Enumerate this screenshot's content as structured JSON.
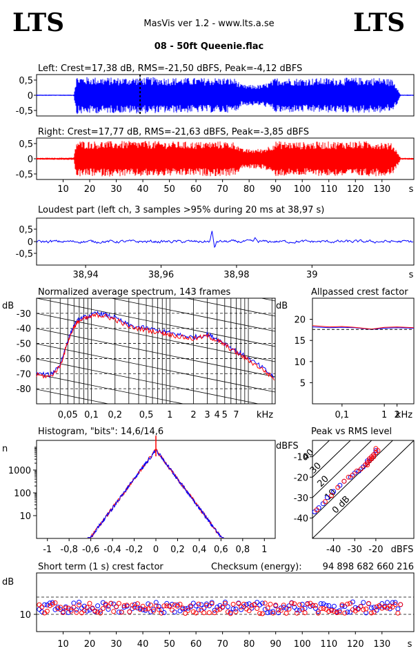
{
  "header": {
    "logo_left": "LTS",
    "logo_right": "LTS",
    "app_title": "MasVis ver 1.2 - www.lts.a.se",
    "file_name": "08 - 50ft Queenie.flac"
  },
  "colors": {
    "left": "#0000ff",
    "right": "#ff0000",
    "background": "#ffffff"
  },
  "chart_data": [
    {
      "type": "area",
      "title": "Left: Crest=17,38 dB, RMS=-21,50 dBFS, Peak=-4,12 dBFS",
      "channel": "left",
      "yticks": [
        "0,5",
        "0",
        "-0,5"
      ],
      "ylim": [
        -1,
        1
      ],
      "xlim": [
        0,
        142
      ],
      "marker_x": 38.97,
      "envelope": {
        "t": [
          0,
          14,
          15,
          20,
          30,
          40,
          50,
          60,
          70,
          75,
          77,
          80,
          85,
          88,
          90,
          100,
          110,
          120,
          130,
          134,
          136,
          137,
          142
        ],
        "amp": [
          0.02,
          0.02,
          0.62,
          0.6,
          0.58,
          0.6,
          0.58,
          0.57,
          0.58,
          0.55,
          0.35,
          0.34,
          0.35,
          0.45,
          0.58,
          0.56,
          0.57,
          0.58,
          0.58,
          0.52,
          0.25,
          0.02,
          0.02
        ]
      }
    },
    {
      "type": "area",
      "title": "Right: Crest=17,77 dB, RMS=-21,63 dBFS, Peak=-3,85 dBFS",
      "channel": "right",
      "yticks": [
        "0,5",
        "0",
        "-0,5"
      ],
      "ylim": [
        -1,
        1
      ],
      "xlim": [
        0,
        142
      ],
      "xticks": [
        "10",
        "20",
        "30",
        "40",
        "50",
        "60",
        "70",
        "80",
        "90",
        "100",
        "110",
        "120",
        "130"
      ],
      "xunit": "s",
      "envelope": {
        "t": [
          0,
          14,
          15,
          20,
          30,
          40,
          50,
          60,
          70,
          75,
          77,
          80,
          85,
          88,
          90,
          100,
          110,
          120,
          130,
          134,
          136,
          137,
          142
        ],
        "amp": [
          0.03,
          0.04,
          0.6,
          0.58,
          0.58,
          0.59,
          0.57,
          0.56,
          0.58,
          0.55,
          0.33,
          0.32,
          0.33,
          0.45,
          0.58,
          0.55,
          0.57,
          0.58,
          0.57,
          0.5,
          0.22,
          0.03,
          0.03
        ]
      }
    },
    {
      "type": "line",
      "title": "Loudest part (left  ch, 3 samples >95% during 20 ms at 38,97 s)",
      "yticks": [
        "0,5",
        "0",
        "-0,5"
      ],
      "ylim": [
        -1,
        1
      ],
      "xlim": [
        38.927,
        39.027
      ],
      "xticks": [
        "38,94",
        "38,96",
        "38,98",
        "39"
      ],
      "xunit": "s",
      "spikes": [
        {
          "x": 38.9735,
          "y": 0.38
        },
        {
          "x": 38.9742,
          "y": -0.22
        },
        {
          "x": 38.985,
          "y": 0.12
        }
      ]
    },
    {
      "type": "line",
      "title": "Normalized average spectrum, 143 frames",
      "ylabel": "dB",
      "yticks": [
        "-30",
        "-40",
        "-50",
        "-60",
        "-70",
        "-80"
      ],
      "ylim": [
        -90,
        -20
      ],
      "xscale": "log",
      "xlim": [
        0.02,
        22
      ],
      "xticks": [
        "0,05",
        "0,1",
        "0,2",
        "0,5",
        "1",
        "2",
        "3",
        "4",
        "5",
        "7"
      ],
      "xunit": "kHz",
      "series": [
        {
          "channel": "left",
          "x": [
            0.02,
            0.03,
            0.04,
            0.05,
            0.06,
            0.07,
            0.09,
            0.12,
            0.15,
            0.2,
            0.3,
            0.5,
            0.8,
            1,
            1.5,
            2,
            3,
            4,
            5,
            7,
            10,
            15,
            22
          ],
          "y": [
            -70,
            -71,
            -64,
            -48,
            -38,
            -34,
            -32,
            -30,
            -31,
            -33,
            -38,
            -40,
            -42,
            -43,
            -45,
            -46,
            -44,
            -47,
            -50,
            -55,
            -60,
            -66,
            -73
          ]
        },
        {
          "channel": "right",
          "x": [
            0.02,
            0.03,
            0.04,
            0.05,
            0.06,
            0.07,
            0.09,
            0.12,
            0.15,
            0.2,
            0.3,
            0.5,
            0.8,
            1,
            1.5,
            2,
            3,
            4,
            5,
            7,
            10,
            15,
            22
          ],
          "y": [
            -71,
            -72,
            -65,
            -49,
            -39,
            -35,
            -33,
            -31,
            -32,
            -34,
            -39,
            -41,
            -43,
            -44,
            -46,
            -47,
            -45,
            -48,
            -51,
            -56,
            -61,
            -67,
            -74
          ]
        }
      ]
    },
    {
      "type": "line",
      "title": "Allpassed crest factor",
      "ylabel": "dB",
      "yticks": [
        "20",
        "15",
        "10",
        "5"
      ],
      "ylim": [
        0,
        25
      ],
      "xscale": "log",
      "xlim": [
        0.02,
        5
      ],
      "xticks": [
        "0,1",
        "1",
        "2"
      ],
      "xunit": "kHz",
      "series": [
        {
          "channel": "left",
          "x": [
            0.02,
            0.05,
            0.1,
            0.2,
            0.5,
            1,
            2,
            5
          ],
          "y": [
            18.2,
            18.0,
            18.1,
            18.0,
            17.6,
            17.9,
            18.0,
            17.9
          ]
        },
        {
          "channel": "right",
          "x": [
            0.02,
            0.05,
            0.1,
            0.2,
            0.5,
            1,
            2,
            5
          ],
          "y": [
            18.5,
            18.2,
            18.3,
            18.1,
            17.7,
            18.1,
            18.2,
            18.0
          ]
        }
      ]
    },
    {
      "type": "line",
      "title": "Histogram, \"bits\": 14,6/14,6",
      "ylabel": "n",
      "yscale": "log",
      "yticks": [
        "1000",
        "100",
        "10"
      ],
      "ylim": [
        1,
        20000
      ],
      "xlim": [
        -1.1,
        1.1
      ],
      "xticks": [
        "-1",
        "-0,8",
        "-0,6",
        "-0,4",
        "-0,2",
        "0",
        "0,2",
        "0,4",
        "0,6",
        "0,8",
        "1"
      ],
      "peak_count": 8000,
      "edge": 0.63
    },
    {
      "type": "scatter",
      "title": "Peak vs RMS level",
      "ylabel": "dBFS",
      "yticks": [
        "-10",
        "-20",
        "-30",
        "-40"
      ],
      "ylim": [
        -50,
        -2
      ],
      "xlim": [
        -50,
        -2
      ],
      "xticks": [
        "-40",
        "-30",
        "-20"
      ],
      "xunit": "dBFS",
      "diagonal_labels": [
        "40",
        "30",
        "20",
        "10",
        "0 dB"
      ],
      "series": [
        {
          "channel": "left",
          "x": [
            -49,
            -47,
            -45,
            -43,
            -40,
            -37,
            -35,
            -32,
            -30,
            -28,
            -26,
            -25,
            -24,
            -23,
            -22,
            -21,
            -20,
            -20,
            -21,
            -22,
            -23,
            -24
          ],
          "y": [
            -37,
            -35,
            -33,
            -30,
            -27,
            -24,
            -22,
            -20,
            -18,
            -17,
            -15,
            -14,
            -12,
            -11,
            -10,
            -9,
            -8,
            -7,
            -9,
            -11,
            -12,
            -13
          ]
        },
        {
          "channel": "right",
          "x": [
            -48,
            -44,
            -41,
            -38,
            -35,
            -33,
            -31,
            -29,
            -27,
            -25,
            -24,
            -23,
            -22,
            -21,
            -20,
            -20,
            -19,
            -21,
            -22,
            -23,
            -24
          ],
          "y": [
            -36,
            -32,
            -29,
            -25,
            -22,
            -20,
            -19,
            -17,
            -16,
            -14,
            -13,
            -11,
            -10,
            -9,
            -8,
            -6,
            -7,
            -10,
            -11,
            -12,
            -14
          ]
        }
      ]
    },
    {
      "type": "scatter",
      "title": "Short term (1 s) crest factor",
      "checksum_label": "Checksum (energy):",
      "checksum_value": "94 898 682 660 216",
      "ylabel": "dB",
      "yticks": [
        "10"
      ],
      "ylim": [
        5,
        22
      ],
      "xlim": [
        0,
        142
      ],
      "xticks": [
        "10",
        "20",
        "30",
        "40",
        "50",
        "60",
        "70",
        "80",
        "90",
        "100",
        "110",
        "120",
        "130"
      ],
      "xunit": "s",
      "dashed_levels": [
        10,
        15
      ],
      "series": [
        {
          "channel": "left",
          "mean": 12
        },
        {
          "channel": "right",
          "mean": 11.8
        }
      ]
    }
  ]
}
